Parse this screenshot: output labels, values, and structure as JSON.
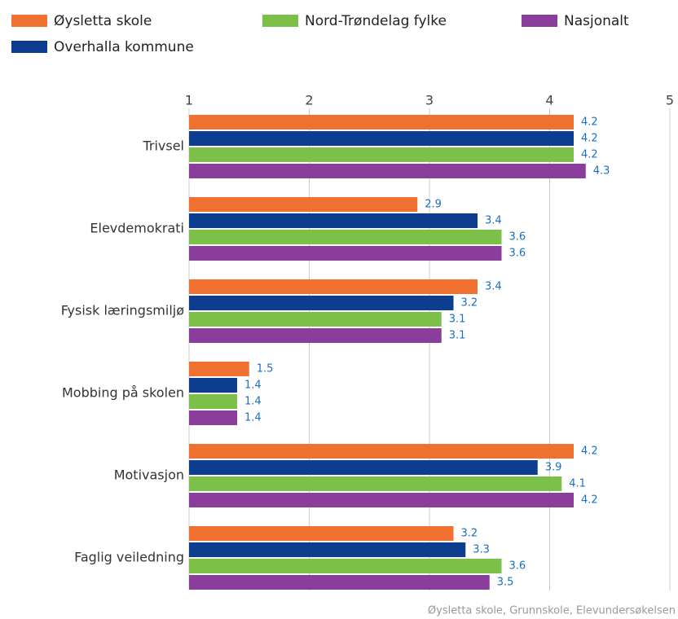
{
  "chart_data": {
    "type": "bar",
    "orientation": "horizontal",
    "categories": [
      "Trivsel",
      "Elevdemokrati",
      "Fysisk læringsmiljø",
      "Mobbing på skolen",
      "Motivasjon",
      "Faglig veiledning"
    ],
    "series": [
      {
        "name": "Øysletta skole",
        "color": "#f07030",
        "values": [
          4.2,
          2.9,
          3.4,
          1.5,
          4.2,
          3.2
        ]
      },
      {
        "name": "Overhalla kommune",
        "color": "#0c3d8e",
        "values": [
          4.2,
          3.4,
          3.2,
          1.4,
          3.9,
          3.3
        ]
      },
      {
        "name": "Nord-Trøndelag fylke",
        "color": "#7cc04a",
        "values": [
          4.2,
          3.6,
          3.1,
          1.4,
          4.1,
          3.6
        ]
      },
      {
        "name": "Nasjonalt",
        "color": "#8b3d9b",
        "values": [
          4.3,
          3.6,
          3.1,
          1.4,
          4.2,
          3.5
        ]
      }
    ],
    "xlim": [
      1,
      5
    ],
    "xticks": [
      1,
      2,
      3,
      4,
      5
    ],
    "grid": true,
    "caption": "Øysletta skole, Grunnskole, Elevundersøkelsen"
  }
}
